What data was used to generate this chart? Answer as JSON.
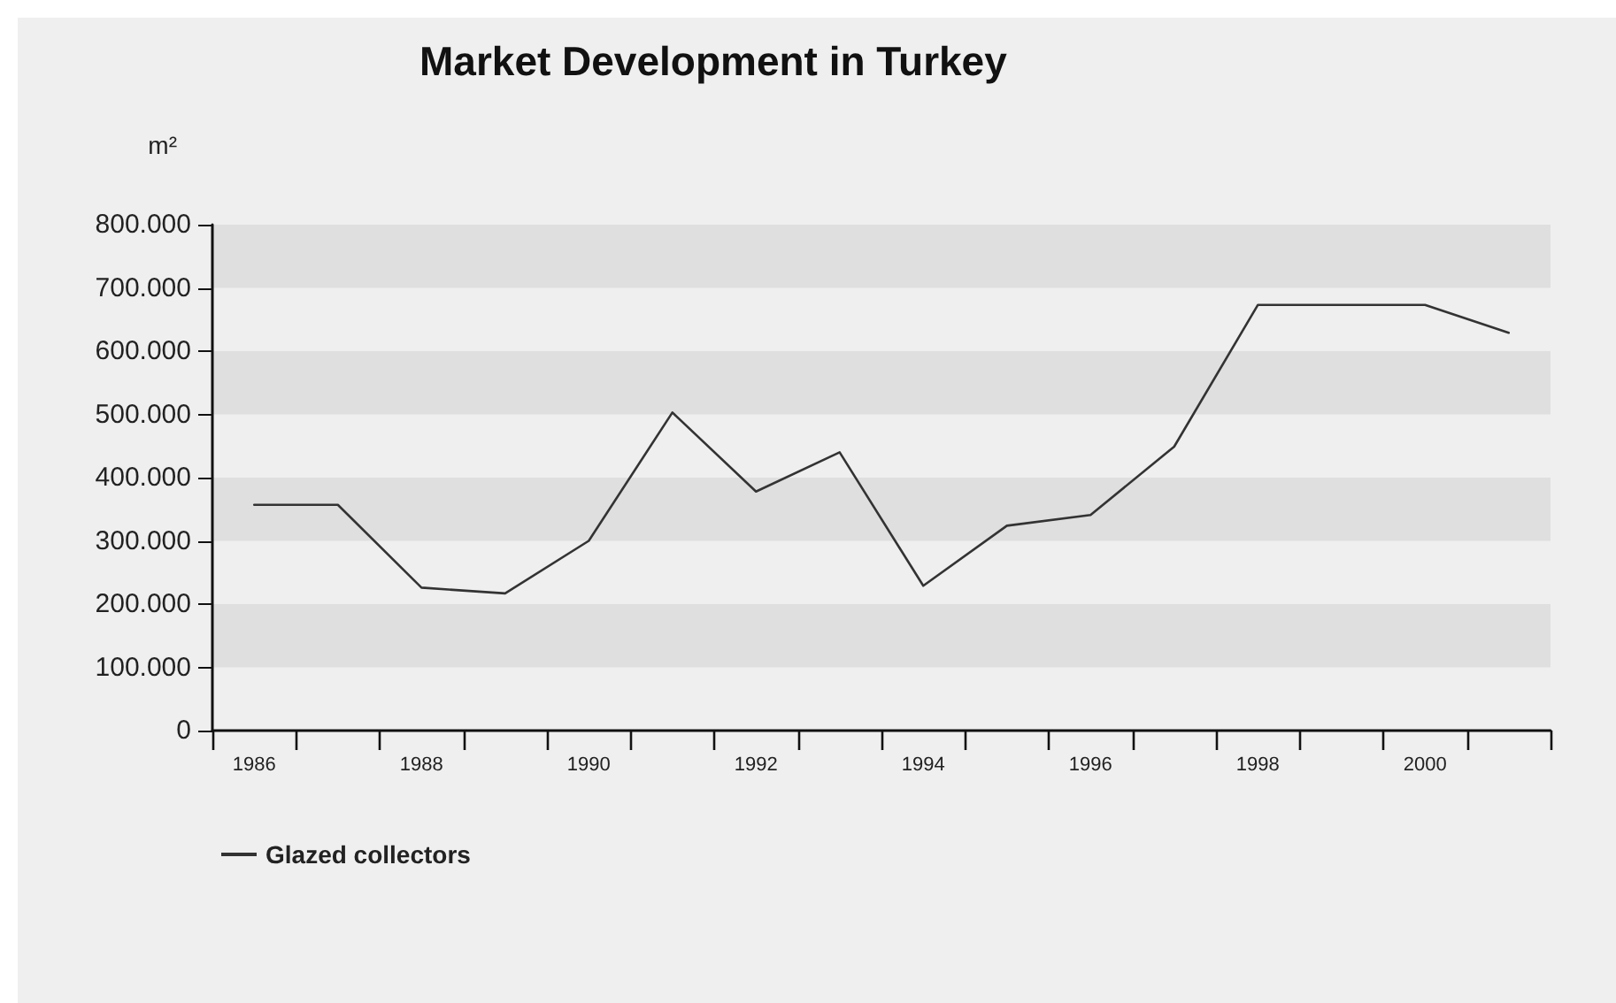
{
  "chart_data": {
    "type": "line",
    "title": "Market Development in Turkey",
    "ylabel": "m²",
    "categories": [
      "1986",
      null,
      "1988",
      null,
      "1990",
      null,
      "1992",
      null,
      "1994",
      null,
      "1996",
      null,
      "1998",
      null,
      "2000",
      null
    ],
    "series": [
      {
        "name": "Glazed collectors",
        "color": "#333333",
        "values": [
          357000,
          357000,
          226000,
          217000,
          300000,
          503000,
          378000,
          440000,
          229000,
          324000,
          341000,
          449000,
          673000,
          673000,
          673000,
          629000
        ]
      }
    ],
    "ylim": [
      0,
      800000
    ],
    "yticks": [
      {
        "value": 0,
        "label": "0"
      },
      {
        "value": 100000,
        "label": "100.000"
      },
      {
        "value": 200000,
        "label": "200.000"
      },
      {
        "value": 300000,
        "label": "300.000"
      },
      {
        "value": 400000,
        "label": "400.000"
      },
      {
        "value": 500000,
        "label": "500.000"
      },
      {
        "value": 600000,
        "label": "600.000"
      },
      {
        "value": 700000,
        "label": "700.000"
      },
      {
        "value": 800000,
        "label": "800.000"
      }
    ],
    "grid": false,
    "legend": "bottom left",
    "marker": "none",
    "line_style": "solid"
  }
}
